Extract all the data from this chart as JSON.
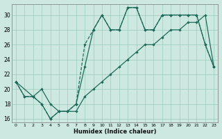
{
  "xlabel": "Humidex (Indice chaleur)",
  "bg_color": "#cce8e0",
  "grid_color": "#99ccbb",
  "line_color": "#1e6b5a",
  "xlim_min": -0.5,
  "xlim_max": 23.5,
  "ylim_min": 15.5,
  "ylim_max": 31.5,
  "xticks": [
    0,
    1,
    2,
    3,
    4,
    5,
    6,
    7,
    8,
    9,
    10,
    11,
    12,
    13,
    14,
    15,
    16,
    17,
    18,
    19,
    20,
    21,
    22,
    23
  ],
  "yticks": [
    16,
    18,
    20,
    22,
    24,
    26,
    28,
    30
  ],
  "line1_x": [
    0,
    1,
    2,
    3,
    4,
    5,
    6,
    7,
    8,
    9,
    10,
    11,
    12,
    13,
    14,
    15,
    16,
    17,
    18,
    19,
    20,
    21,
    22,
    23
  ],
  "line1_y": [
    21,
    19,
    19,
    18,
    16,
    17,
    17,
    18,
    26,
    28,
    30,
    28,
    28,
    31,
    31,
    28,
    28,
    30,
    30,
    30,
    30,
    30,
    26,
    23
  ],
  "line2_x": [
    0,
    1,
    2,
    3,
    4,
    5,
    6,
    7,
    8,
    9,
    10,
    11,
    12,
    13,
    14,
    15,
    16,
    17,
    18,
    19,
    20,
    21,
    22,
    23
  ],
  "line2_y": [
    21,
    19,
    19,
    18,
    16,
    17,
    17,
    18,
    23,
    28,
    30,
    28,
    28,
    31,
    31,
    28,
    28,
    30,
    30,
    30,
    30,
    30,
    26,
    23
  ],
  "line3_x": [
    0,
    2,
    3,
    4,
    5,
    6,
    7,
    8,
    9,
    10,
    11,
    12,
    13,
    14,
    15,
    16,
    17,
    18,
    19,
    20,
    21,
    22,
    23
  ],
  "line3_y": [
    21,
    19,
    20,
    18,
    17,
    17,
    17,
    19,
    20,
    21,
    22,
    23,
    24,
    25,
    26,
    26,
    27,
    28,
    28,
    29,
    29,
    30,
    23
  ]
}
